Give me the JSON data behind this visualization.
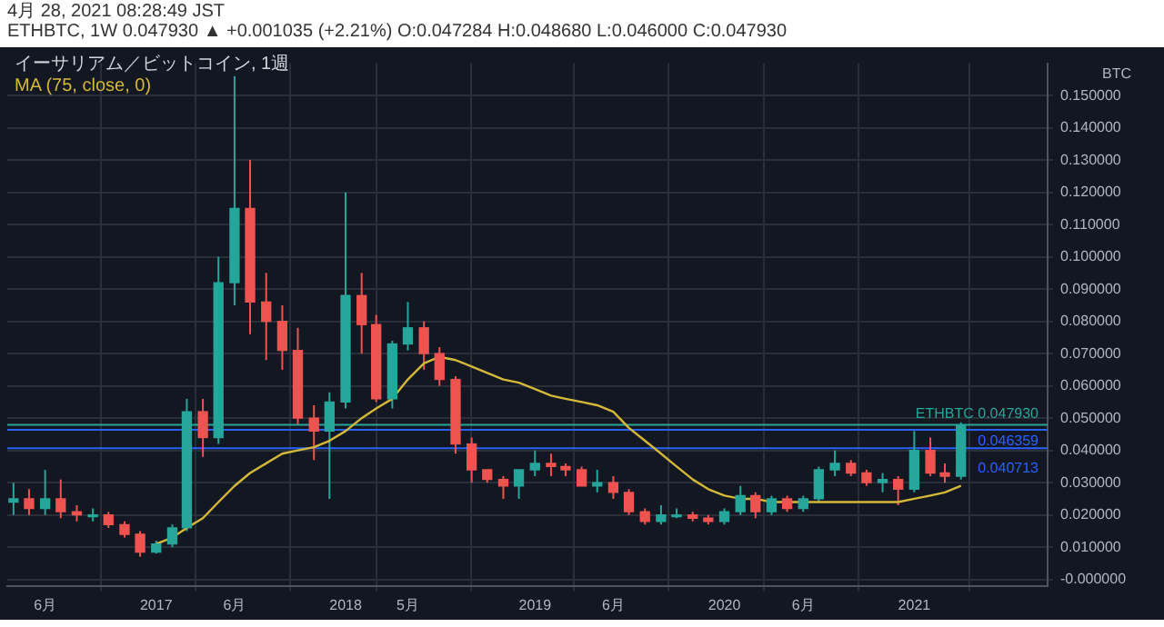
{
  "chart_data": {
    "type": "candlestick",
    "title": "イーサリアム／ビットコイン, 1週",
    "subtitle": "4月 28, 2021 08:28:49 JST",
    "ylabel": "BTC",
    "annotations": [
      "ETHBTC, 1W 0.047930 ▲ +0.001035 (+2.21%) O:0.047284 H:0.048680 L:0.046000 C:0.047930"
    ],
    "x": [
      "2016-04",
      "2016-05",
      "2016-06",
      "2016-07",
      "2016-08",
      "2016-09",
      "2016-10",
      "2016-11",
      "2016-12",
      "2017-01",
      "2017-02",
      "2017-03",
      "2017-04",
      "2017-05",
      "2017-06",
      "2017-07",
      "2017-08",
      "2017-09",
      "2017-10",
      "2017-11",
      "2017-12",
      "2018-01",
      "2018-02",
      "2018-03",
      "2018-04",
      "2018-05",
      "2018-06",
      "2018-07",
      "2018-08",
      "2018-09",
      "2018-10",
      "2018-11",
      "2018-12",
      "2019-01",
      "2019-02",
      "2019-03",
      "2019-04",
      "2019-05",
      "2019-06",
      "2019-07",
      "2019-08",
      "2019-09",
      "2019-10",
      "2019-11",
      "2019-12",
      "2020-01",
      "2020-02",
      "2020-03",
      "2020-04",
      "2020-05",
      "2020-06",
      "2020-07",
      "2020-08",
      "2020-09",
      "2020-10",
      "2020-11",
      "2020-12",
      "2021-01",
      "2021-02",
      "2021-03",
      "2021-04"
    ],
    "ohlc": [
      [
        0.024,
        0.03,
        0.02,
        0.025
      ],
      [
        0.025,
        0.028,
        0.02,
        0.022
      ],
      [
        0.022,
        0.034,
        0.02,
        0.025
      ],
      [
        0.025,
        0.031,
        0.019,
        0.021
      ],
      [
        0.021,
        0.023,
        0.018,
        0.02
      ],
      [
        0.02,
        0.022,
        0.018,
        0.02
      ],
      [
        0.02,
        0.021,
        0.016,
        0.017
      ],
      [
        0.017,
        0.018,
        0.013,
        0.014
      ],
      [
        0.014,
        0.015,
        0.007,
        0.0085
      ],
      [
        0.0085,
        0.012,
        0.008,
        0.011
      ],
      [
        0.011,
        0.017,
        0.01,
        0.016
      ],
      [
        0.016,
        0.056,
        0.015,
        0.052
      ],
      [
        0.052,
        0.056,
        0.038,
        0.044
      ],
      [
        0.044,
        0.1,
        0.042,
        0.092
      ],
      [
        0.092,
        0.156,
        0.085,
        0.115
      ],
      [
        0.115,
        0.13,
        0.076,
        0.086
      ],
      [
        0.086,
        0.095,
        0.068,
        0.08
      ],
      [
        0.08,
        0.085,
        0.065,
        0.071
      ],
      [
        0.071,
        0.078,
        0.048,
        0.05
      ],
      [
        0.05,
        0.054,
        0.037,
        0.046
      ],
      [
        0.046,
        0.058,
        0.025,
        0.055
      ],
      [
        0.055,
        0.12,
        0.053,
        0.088
      ],
      [
        0.088,
        0.095,
        0.07,
        0.079
      ],
      [
        0.079,
        0.082,
        0.055,
        0.056
      ],
      [
        0.056,
        0.074,
        0.053,
        0.073
      ],
      [
        0.073,
        0.086,
        0.071,
        0.078
      ],
      [
        0.078,
        0.08,
        0.065,
        0.07
      ],
      [
        0.07,
        0.072,
        0.06,
        0.062
      ],
      [
        0.062,
        0.063,
        0.039,
        0.042
      ],
      [
        0.042,
        0.044,
        0.03,
        0.034
      ],
      [
        0.034,
        0.034,
        0.03,
        0.031
      ],
      [
        0.031,
        0.032,
        0.025,
        0.029
      ],
      [
        0.029,
        0.034,
        0.025,
        0.034
      ],
      [
        0.034,
        0.04,
        0.032,
        0.036
      ],
      [
        0.036,
        0.039,
        0.032,
        0.035
      ],
      [
        0.035,
        0.036,
        0.032,
        0.034
      ],
      [
        0.034,
        0.035,
        0.029,
        0.029
      ],
      [
        0.029,
        0.034,
        0.027,
        0.03
      ],
      [
        0.03,
        0.032,
        0.025,
        0.027
      ],
      [
        0.027,
        0.028,
        0.02,
        0.021
      ],
      [
        0.021,
        0.022,
        0.017,
        0.018
      ],
      [
        0.018,
        0.023,
        0.017,
        0.02
      ],
      [
        0.02,
        0.022,
        0.019,
        0.02
      ],
      [
        0.02,
        0.021,
        0.018,
        0.019
      ],
      [
        0.019,
        0.02,
        0.017,
        0.018
      ],
      [
        0.018,
        0.022,
        0.017,
        0.021
      ],
      [
        0.021,
        0.029,
        0.02,
        0.026
      ],
      [
        0.026,
        0.027,
        0.019,
        0.021
      ],
      [
        0.021,
        0.026,
        0.02,
        0.025
      ],
      [
        0.025,
        0.026,
        0.021,
        0.022
      ],
      [
        0.022,
        0.026,
        0.021,
        0.025
      ],
      [
        0.025,
        0.035,
        0.024,
        0.034
      ],
      [
        0.034,
        0.04,
        0.032,
        0.036
      ],
      [
        0.036,
        0.037,
        0.032,
        0.033
      ],
      [
        0.033,
        0.034,
        0.029,
        0.03
      ],
      [
        0.03,
        0.033,
        0.027,
        0.031
      ],
      [
        0.031,
        0.032,
        0.023,
        0.028
      ],
      [
        0.028,
        0.046,
        0.027,
        0.04
      ],
      [
        0.04,
        0.044,
        0.032,
        0.033
      ],
      [
        0.033,
        0.036,
        0.03,
        0.032
      ],
      [
        0.032,
        0.0487,
        0.031,
        0.0479
      ]
    ],
    "series": [
      {
        "name": "MA (75, close, 0)",
        "type": "line",
        "color": "#d4b83a",
        "x": [
          "2017-01",
          "2017-02",
          "2017-03",
          "2017-04",
          "2017-05",
          "2017-06",
          "2017-07",
          "2017-08",
          "2017-09",
          "2017-10",
          "2017-11",
          "2017-12",
          "2018-01",
          "2018-02",
          "2018-03",
          "2018-04",
          "2018-05",
          "2018-06",
          "2018-07",
          "2018-08",
          "2018-09",
          "2018-10",
          "2018-11",
          "2018-12",
          "2019-01",
          "2019-02",
          "2019-03",
          "2019-04",
          "2019-05",
          "2019-06",
          "2019-07",
          "2019-08",
          "2019-09",
          "2019-10",
          "2019-11",
          "2019-12",
          "2020-01",
          "2020-02",
          "2020-03",
          "2020-04",
          "2020-05",
          "2020-06",
          "2020-07",
          "2020-08",
          "2020-09",
          "2020-10",
          "2020-11",
          "2020-12",
          "2021-01",
          "2021-02",
          "2021-03",
          "2021-04"
        ],
        "values": [
          0.011,
          0.013,
          0.016,
          0.019,
          0.024,
          0.029,
          0.033,
          0.036,
          0.039,
          0.04,
          0.041,
          0.043,
          0.046,
          0.05,
          0.053,
          0.056,
          0.062,
          0.067,
          0.069,
          0.068,
          0.066,
          0.064,
          0.062,
          0.061,
          0.059,
          0.057,
          0.056,
          0.055,
          0.054,
          0.052,
          0.047,
          0.043,
          0.039,
          0.035,
          0.031,
          0.028,
          0.026,
          0.025,
          0.025,
          0.024,
          0.024,
          0.024,
          0.024,
          0.024,
          0.024,
          0.024,
          0.024,
          0.024,
          0.025,
          0.026,
          0.027,
          0.029
        ]
      }
    ],
    "ref_lines": [
      {
        "axis": "y",
        "value": 0.04793,
        "label": "ETHBTC 0.047930",
        "color": "#26a69a"
      },
      {
        "axis": "y",
        "value": 0.046359,
        "label": "0.046359",
        "color": "#2962ff"
      },
      {
        "axis": "y",
        "value": 0.040713,
        "label": "0.040713",
        "color": "#2962ff"
      }
    ],
    "xlim": [
      "2016-03-20",
      "2021-09-15"
    ],
    "xticks": [
      {
        "value": "2016-06",
        "label": "6月"
      },
      {
        "value": "2017-01",
        "label": "2017"
      },
      {
        "value": "2017-06",
        "label": "6月"
      },
      {
        "value": "2018-01",
        "label": "2018"
      },
      {
        "value": "2018-05",
        "label": "5月"
      },
      {
        "value": "2019-01",
        "label": "2019"
      },
      {
        "value": "2019-06",
        "label": "6月"
      },
      {
        "value": "2020-01",
        "label": "2020"
      },
      {
        "value": "2020-06",
        "label": "6月"
      },
      {
        "value": "2021-01",
        "label": "2021"
      }
    ],
    "ylim": [
      -0.002,
      0.16
    ],
    "yticks": [
      {
        "value": 0,
        "label": "-0.000000"
      },
      {
        "value": 0.01,
        "label": "0.010000"
      },
      {
        "value": 0.02,
        "label": "0.020000"
      },
      {
        "value": 0.03,
        "label": "0.030000"
      },
      {
        "value": 0.04,
        "label": "0.040000"
      },
      {
        "value": 0.05,
        "label": "0.050000"
      },
      {
        "value": 0.06,
        "label": "0.060000"
      },
      {
        "value": 0.07,
        "label": "0.070000"
      },
      {
        "value": 0.08,
        "label": "0.080000"
      },
      {
        "value": 0.09,
        "label": "0.090000"
      },
      {
        "value": 0.1,
        "label": "0.100000"
      },
      {
        "value": 0.11,
        "label": "0.110000"
      },
      {
        "value": 0.12,
        "label": "0.120000"
      },
      {
        "value": 0.13,
        "label": "0.130000"
      },
      {
        "value": 0.14,
        "label": "0.140000"
      },
      {
        "value": 0.15,
        "label": "0.150000"
      }
    ],
    "grid": true,
    "legend": "top left"
  }
}
